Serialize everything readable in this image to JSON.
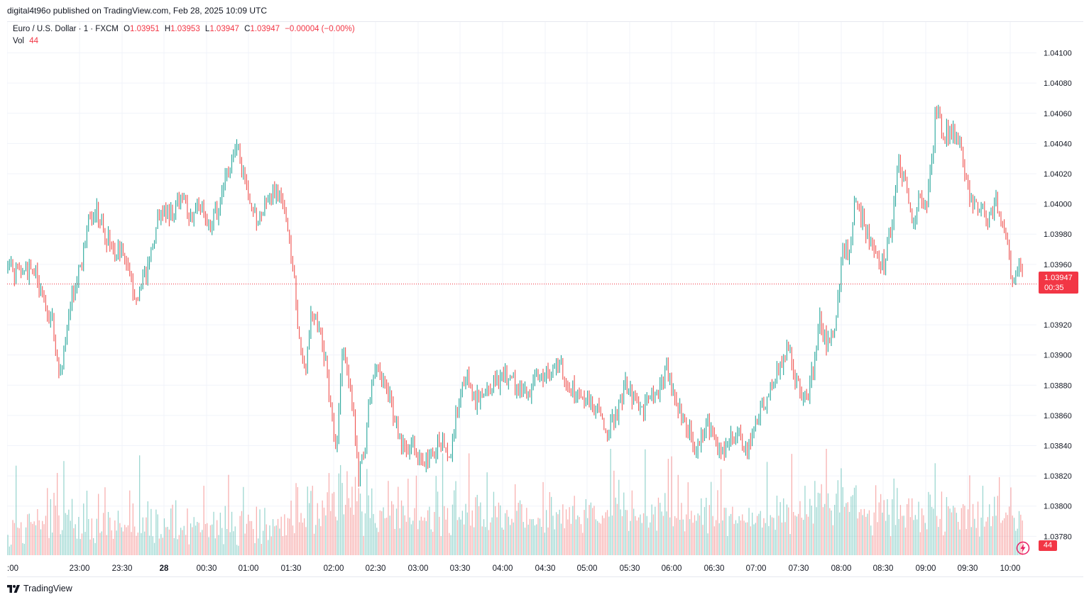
{
  "publisher_line": "digital4t96o published on TradingView.com, Feb 28, 2025 10:09 UTC",
  "legend": {
    "symbol": "Euro / U.S. Dollar · 1 · FXCM",
    "o_label": "O",
    "o_value": "1.03951",
    "h_label": "H",
    "h_value": "1.03953",
    "l_label": "L",
    "l_value": "1.03947",
    "c_label": "C",
    "c_value": "1.03947",
    "change": "−0.00004 (−0.00%)",
    "vol_label": "Vol",
    "vol_value": "44"
  },
  "last_price_tag": {
    "price": "1.03947",
    "countdown": "00:35"
  },
  "volume_tag": "44",
  "footer": {
    "brand": "TradingView"
  },
  "colors": {
    "up": "#26a69a",
    "down": "#ef5350",
    "accent_red": "#f23645",
    "grid": "#f0f3fa",
    "text": "#131722"
  },
  "icons": {
    "bolt": "lightning-bolt-icon",
    "logo": "tradingview-logo-icon"
  },
  "chart_data": {
    "type": "candlestick",
    "x_ticks": [
      ":00",
      "23:00",
      "23:30",
      "28",
      "00:30",
      "01:00",
      "01:30",
      "02:00",
      "02:30",
      "03:00",
      "03:30",
      "04:00",
      "04:30",
      "05:00",
      "05:30",
      "06:00",
      "06:30",
      "07:00",
      "07:30",
      "08:00",
      "08:30",
      "09:00",
      "09:30",
      "10:00"
    ],
    "y_ticks": [
      "1.04100",
      "1.04080",
      "1.04060",
      "1.04040",
      "1.04020",
      "1.04000",
      "1.03980",
      "1.03960",
      "1.03920",
      "1.03900",
      "1.03880",
      "1.03860",
      "1.03840",
      "1.03820",
      "1.03800",
      "1.03780"
    ],
    "ylim": [
      1.03775,
      1.04112
    ],
    "last_price": 1.03947,
    "price_path": [
      [
        0,
        1.03955
      ],
      [
        5,
        1.03965
      ],
      [
        10,
        1.03955
      ],
      [
        40,
        1.03955
      ],
      [
        50,
        1.03935
      ],
      [
        63,
        1.03925
      ],
      [
        75,
        1.03885
      ],
      [
        90,
        1.03935
      ],
      [
        105,
        1.0396
      ],
      [
        115,
        1.0399
      ],
      [
        127,
        1.03995
      ],
      [
        138,
        1.0398
      ],
      [
        150,
        1.0397
      ],
      [
        163,
        1.03965
      ],
      [
        173,
        1.03955
      ],
      [
        180,
        1.0394
      ],
      [
        193,
        1.0395
      ],
      [
        205,
        1.03975
      ],
      [
        215,
        1.03995
      ],
      [
        235,
        1.03995
      ],
      [
        245,
        1.04005
      ],
      [
        258,
        1.0399
      ],
      [
        275,
        1.04
      ],
      [
        285,
        1.03985
      ],
      [
        300,
        1.04
      ],
      [
        312,
        1.04025
      ],
      [
        325,
        1.04035
      ],
      [
        338,
        1.0401
      ],
      [
        350,
        1.0399
      ],
      [
        365,
        1.04
      ],
      [
        380,
        1.0401
      ],
      [
        395,
        1.03985
      ],
      [
        405,
        1.03945
      ],
      [
        410,
        1.0391
      ],
      [
        420,
        1.0389
      ],
      [
        428,
        1.03925
      ],
      [
        440,
        1.0392
      ],
      [
        450,
        1.0389
      ],
      [
        458,
        1.03855
      ],
      [
        465,
        1.0384
      ],
      [
        472,
        1.039
      ],
      [
        480,
        1.0389
      ],
      [
        488,
        1.0386
      ],
      [
        495,
        1.0382
      ],
      [
        505,
        1.0384
      ],
      [
        512,
        1.0388
      ],
      [
        520,
        1.03895
      ],
      [
        533,
        1.0388
      ],
      [
        545,
        1.0386
      ],
      [
        555,
        1.0384
      ],
      [
        565,
        1.03835
      ],
      [
        575,
        1.0384
      ],
      [
        585,
        1.03825
      ],
      [
        595,
        1.0383
      ],
      [
        610,
        1.03845
      ],
      [
        625,
        1.0383
      ],
      [
        635,
        1.0387
      ],
      [
        645,
        1.03885
      ],
      [
        660,
        1.0387
      ],
      [
        670,
        1.0387
      ],
      [
        680,
        1.0388
      ],
      [
        700,
        1.03885
      ],
      [
        720,
        1.0388
      ],
      [
        735,
        1.03875
      ],
      [
        750,
        1.03885
      ],
      [
        762,
        1.0389
      ],
      [
        775,
        1.03895
      ],
      [
        790,
        1.0388
      ],
      [
        805,
        1.03875
      ],
      [
        820,
        1.0387
      ],
      [
        835,
        1.0386
      ],
      [
        845,
        1.0385
      ],
      [
        858,
        1.0386
      ],
      [
        870,
        1.0388
      ],
      [
        885,
        1.0387
      ],
      [
        895,
        1.0386
      ],
      [
        905,
        1.03875
      ],
      [
        915,
        1.0387
      ],
      [
        928,
        1.0389
      ],
      [
        940,
        1.03875
      ],
      [
        950,
        1.0386
      ],
      [
        960,
        1.0385
      ],
      [
        970,
        1.03835
      ],
      [
        985,
        1.03855
      ],
      [
        995,
        1.03845
      ],
      [
        1005,
        1.03835
      ],
      [
        1015,
        1.03845
      ],
      [
        1030,
        1.0385
      ],
      [
        1040,
        1.03835
      ],
      [
        1050,
        1.03845
      ],
      [
        1060,
        1.0386
      ],
      [
        1075,
        1.0388
      ],
      [
        1090,
        1.03895
      ],
      [
        1100,
        1.03905
      ],
      [
        1110,
        1.03885
      ],
      [
        1125,
        1.0387
      ],
      [
        1135,
        1.0389
      ],
      [
        1145,
        1.03925
      ],
      [
        1155,
        1.03905
      ],
      [
        1162,
        1.0391
      ],
      [
        1170,
        1.03935
      ],
      [
        1178,
        1.03975
      ],
      [
        1185,
        1.03965
      ],
      [
        1193,
        1.04
      ],
      [
        1205,
        1.0399
      ],
      [
        1215,
        1.03975
      ],
      [
        1225,
        1.03965
      ],
      [
        1235,
        1.0396
      ],
      [
        1245,
        1.03985
      ],
      [
        1255,
        1.04025
      ],
      [
        1265,
        1.0402
      ],
      [
        1275,
        1.03985
      ],
      [
        1285,
        1.04005
      ],
      [
        1295,
        1.03995
      ],
      [
        1302,
        1.04025
      ],
      [
        1308,
        1.04065
      ],
      [
        1318,
        1.04045
      ],
      [
        1330,
        1.0405
      ],
      [
        1340,
        1.04045
      ],
      [
        1350,
        1.0402
      ],
      [
        1360,
        1.04
      ],
      [
        1372,
        1.03995
      ],
      [
        1385,
        1.0399
      ],
      [
        1392,
        1.04005
      ],
      [
        1400,
        1.0399
      ],
      [
        1410,
        1.0397
      ],
      [
        1418,
        1.03945
      ],
      [
        1425,
        1.03955
      ],
      [
        1435,
        1.0395
      ],
      [
        1441,
        1.03947
      ]
    ]
  }
}
